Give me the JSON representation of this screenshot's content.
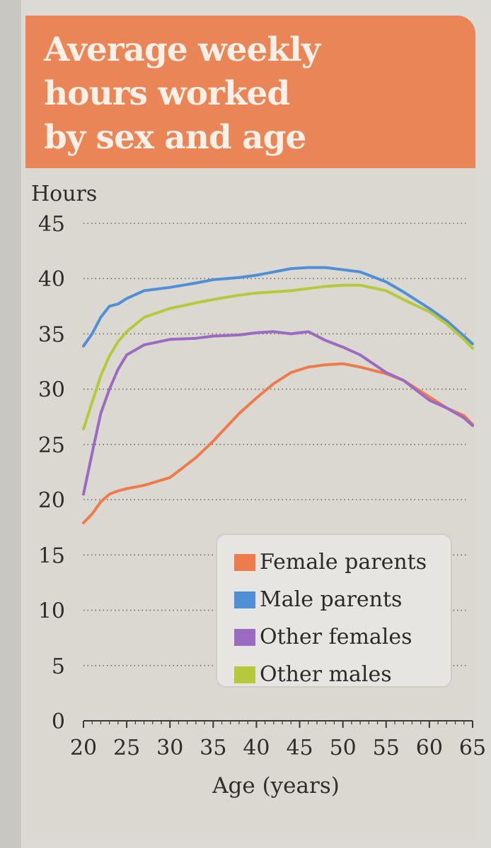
{
  "chart_data": {
    "type": "line",
    "title": "Average weekly hours worked by sex and age",
    "title_lines": [
      "Average weekly",
      "hours worked",
      "by sex and age"
    ],
    "ylabel": "Hours",
    "xlabel": "Age (years)",
    "xlim": [
      20,
      65
    ],
    "ylim": [
      0,
      45
    ],
    "xticks": [
      20,
      25,
      30,
      35,
      40,
      45,
      50,
      55,
      60,
      65
    ],
    "yticks": [
      0,
      5,
      10,
      15,
      20,
      25,
      30,
      35,
      40,
      45
    ],
    "grid": "horizontal dotted",
    "legend_position": "bottom-right",
    "x": [
      20,
      21,
      22,
      23,
      24,
      25,
      27,
      30,
      33,
      35,
      38,
      40,
      42,
      44,
      46,
      48,
      50,
      52,
      55,
      57,
      60,
      62,
      64,
      65
    ],
    "series": [
      {
        "name": "Female parents",
        "color": "#ee7b4c",
        "values": [
          17.9,
          18.7,
          19.8,
          20.5,
          20.8,
          21.0,
          21.3,
          22.0,
          23.8,
          25.3,
          27.8,
          29.2,
          30.5,
          31.5,
          32.0,
          32.2,
          32.3,
          32.0,
          31.4,
          30.8,
          29.3,
          28.3,
          27.6,
          26.8
        ]
      },
      {
        "name": "Male parents",
        "color": "#4f8fd6",
        "values": [
          33.9,
          35.0,
          36.5,
          37.5,
          37.7,
          38.2,
          38.9,
          39.2,
          39.6,
          39.9,
          40.1,
          40.3,
          40.6,
          40.9,
          41.0,
          41.0,
          40.8,
          40.6,
          39.7,
          38.8,
          37.3,
          36.2,
          34.8,
          34.1
        ]
      },
      {
        "name": "Other females",
        "color": "#9a6bc1",
        "values": [
          20.5,
          24.2,
          27.8,
          30.0,
          31.8,
          33.1,
          34.0,
          34.5,
          34.6,
          34.8,
          34.9,
          35.1,
          35.2,
          35.0,
          35.2,
          34.4,
          33.8,
          33.1,
          31.5,
          30.8,
          29.0,
          28.3,
          27.4,
          26.7
        ]
      },
      {
        "name": "Other males",
        "color": "#b5c93b",
        "values": [
          26.4,
          28.8,
          31.2,
          33.0,
          34.3,
          35.2,
          36.5,
          37.3,
          37.8,
          38.1,
          38.5,
          38.7,
          38.8,
          38.9,
          39.1,
          39.3,
          39.4,
          39.4,
          38.9,
          38.1,
          37.0,
          35.9,
          34.5,
          33.7
        ]
      }
    ]
  }
}
